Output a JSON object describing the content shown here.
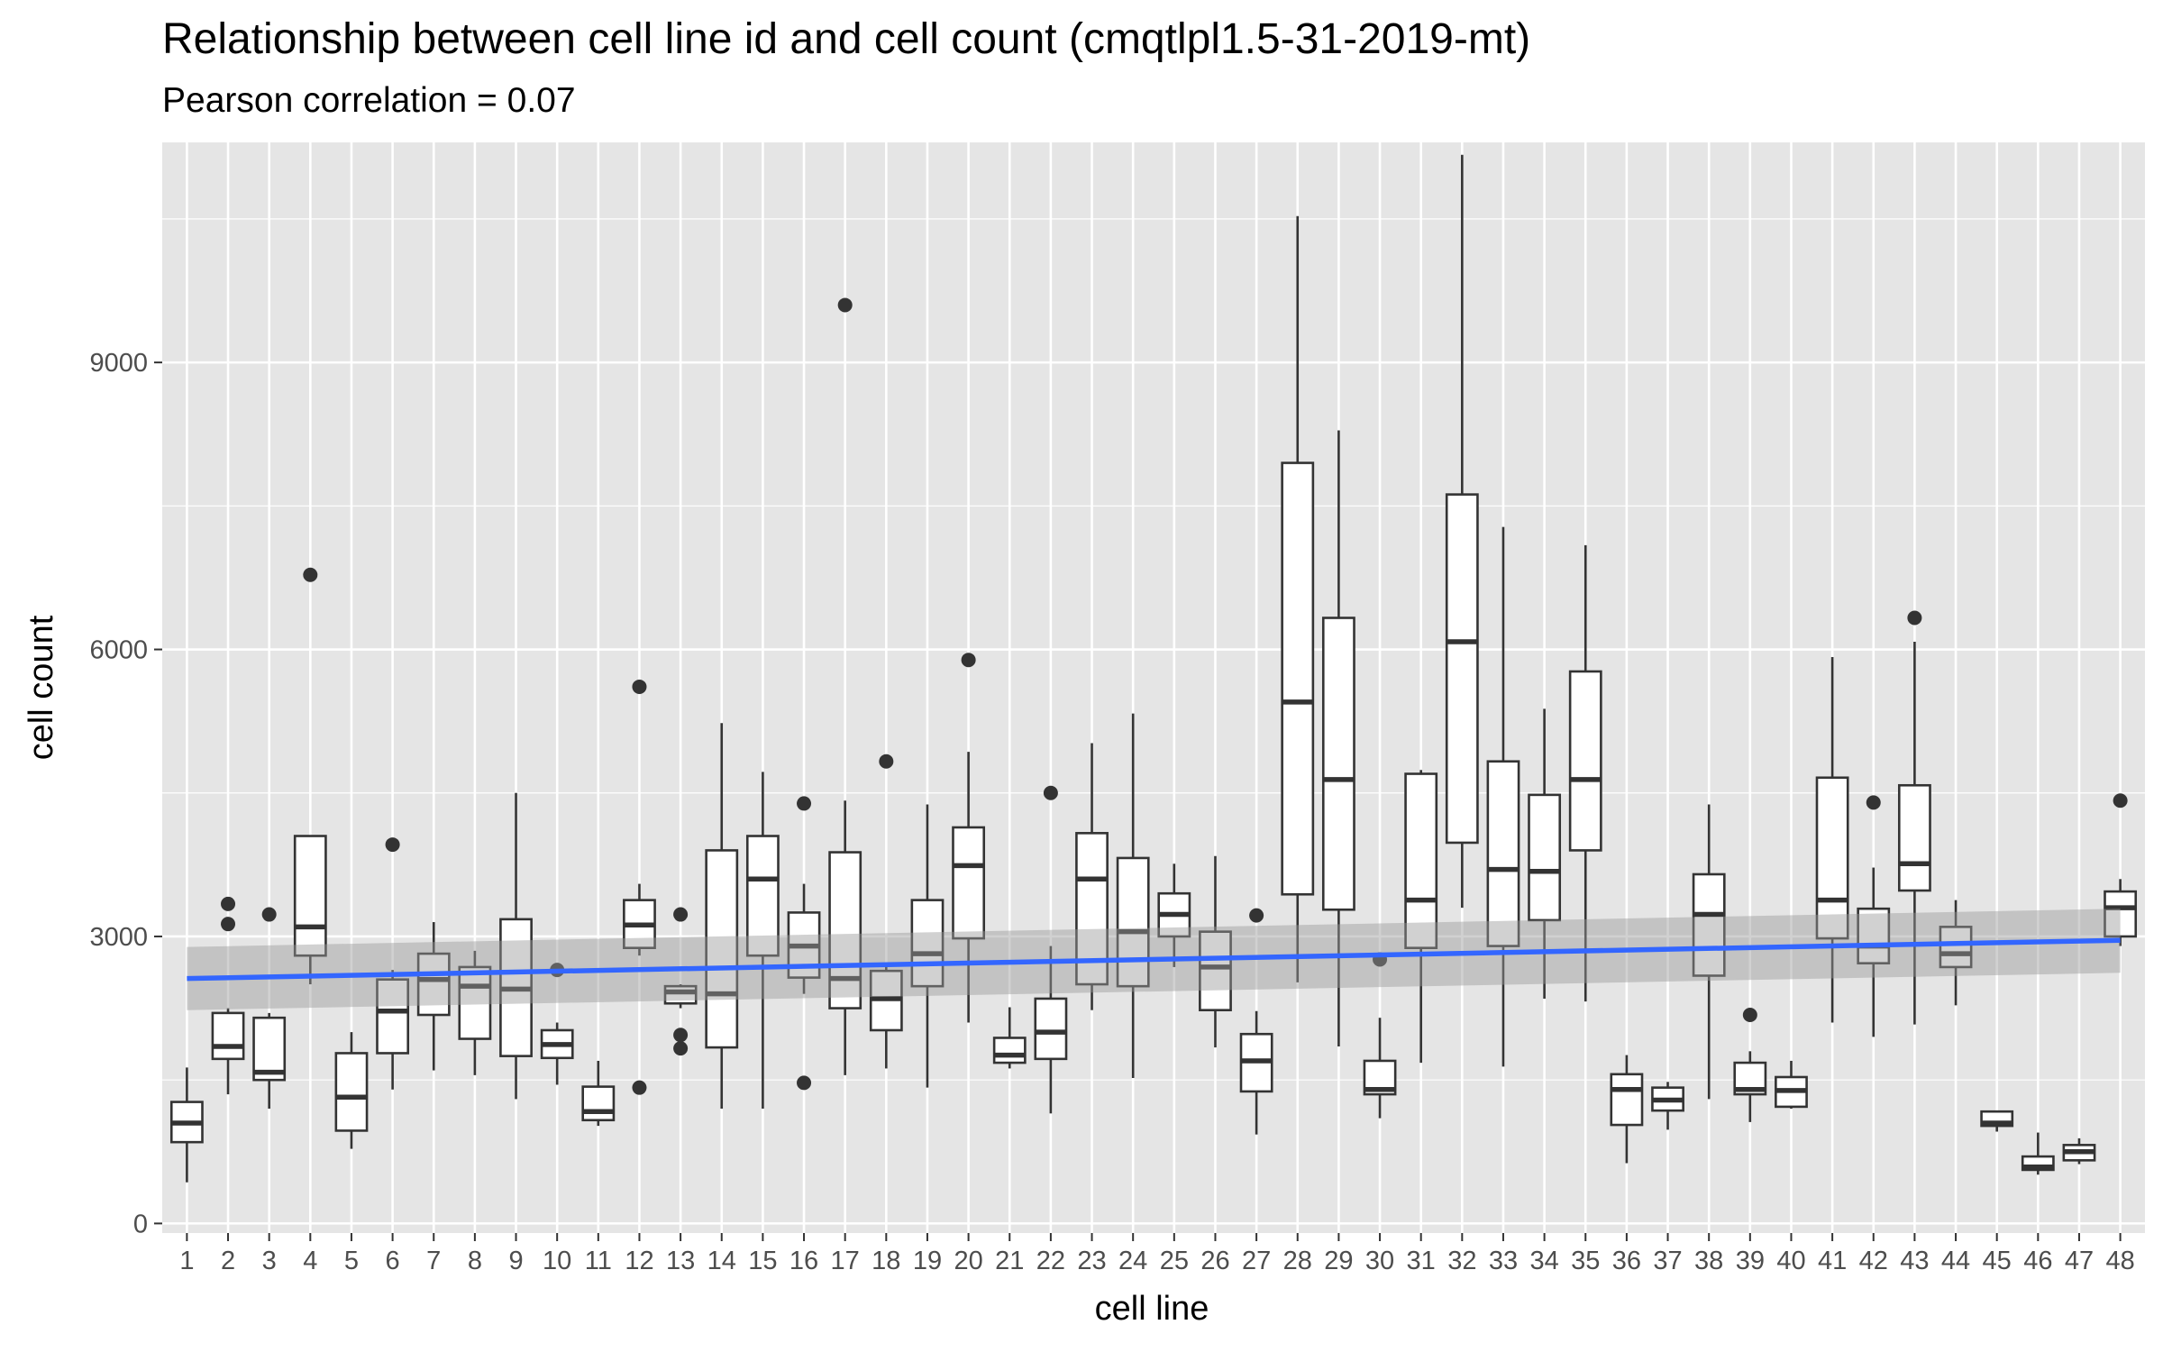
{
  "chart_data": {
    "type": "box",
    "title": "Relationship between cell line id and cell count (cmqtlpl1.5-31-2019-mt)",
    "subtitle": "Pearson correlation = 0.07",
    "xlabel": "cell line",
    "ylabel": "cell count",
    "ylim": [
      -100,
      11300
    ],
    "y_ticks": [
      0,
      3000,
      6000,
      9000
    ],
    "y_tick_labels": [
      "0",
      "3000",
      "6000",
      "9000"
    ],
    "grid": true,
    "legend": "none",
    "colors": {
      "panel": "#e5e5e5",
      "grid": "#ffffff",
      "box_fill": "#ffffff",
      "box_line": "#333333",
      "trend": "#3366ff",
      "ribbon": "#999999"
    },
    "categories": [
      "1",
      "2",
      "3",
      "4",
      "5",
      "6",
      "7",
      "8",
      "9",
      "10",
      "11",
      "12",
      "13",
      "14",
      "15",
      "16",
      "17",
      "18",
      "19",
      "20",
      "21",
      "22",
      "23",
      "24",
      "25",
      "26",
      "27",
      "28",
      "29",
      "30",
      "31",
      "32",
      "33",
      "34",
      "35",
      "36",
      "37",
      "38",
      "39",
      "40",
      "41",
      "42",
      "43",
      "44",
      "45",
      "46",
      "47",
      "48"
    ],
    "boxes": [
      {
        "min": 430,
        "q1": 850,
        "median": 1050,
        "q3": 1270,
        "max": 1630,
        "outliers": []
      },
      {
        "min": 1350,
        "q1": 1720,
        "median": 1850,
        "q3": 2200,
        "max": 2250,
        "outliers": [
          3130,
          3340
        ]
      },
      {
        "min": 1200,
        "q1": 1500,
        "median": 1580,
        "q3": 2150,
        "max": 2200,
        "outliers": [
          3230
        ]
      },
      {
        "min": 2500,
        "q1": 2800,
        "median": 3100,
        "q3": 4050,
        "max": 4050,
        "outliers": [
          6780
        ]
      },
      {
        "min": 780,
        "q1": 970,
        "median": 1320,
        "q3": 1780,
        "max": 2000,
        "outliers": []
      },
      {
        "min": 1400,
        "q1": 1780,
        "median": 2220,
        "q3": 2550,
        "max": 2650,
        "outliers": [
          3960
        ]
      },
      {
        "min": 1600,
        "q1": 2180,
        "median": 2550,
        "q3": 2820,
        "max": 3150,
        "outliers": []
      },
      {
        "min": 1550,
        "q1": 1930,
        "median": 2480,
        "q3": 2680,
        "max": 2850,
        "outliers": []
      },
      {
        "min": 1300,
        "q1": 1750,
        "median": 2450,
        "q3": 3180,
        "max": 4500,
        "outliers": []
      },
      {
        "min": 1450,
        "q1": 1730,
        "median": 1870,
        "q3": 2020,
        "max": 2100,
        "outliers": [
          2650
        ]
      },
      {
        "min": 1020,
        "q1": 1080,
        "median": 1170,
        "q3": 1430,
        "max": 1700,
        "outliers": []
      },
      {
        "min": 2800,
        "q1": 2880,
        "median": 3120,
        "q3": 3380,
        "max": 3550,
        "outliers": [
          1420,
          5610
        ]
      },
      {
        "min": 2250,
        "q1": 2300,
        "median": 2420,
        "q3": 2480,
        "max": 2500,
        "outliers": [
          1830,
          1970,
          3230
        ]
      },
      {
        "min": 1200,
        "q1": 1840,
        "median": 2400,
        "q3": 3900,
        "max": 5230,
        "outliers": []
      },
      {
        "min": 1200,
        "q1": 2800,
        "median": 3600,
        "q3": 4050,
        "max": 4720,
        "outliers": []
      },
      {
        "min": 2400,
        "q1": 2570,
        "median": 2900,
        "q3": 3250,
        "max": 3550,
        "outliers": [
          1470,
          4390
        ]
      },
      {
        "min": 1550,
        "q1": 2250,
        "median": 2560,
        "q3": 3880,
        "max": 4420,
        "outliers": [
          9600
        ]
      },
      {
        "min": 1620,
        "q1": 2020,
        "median": 2350,
        "q3": 2640,
        "max": 2680,
        "outliers": [
          4830
        ]
      },
      {
        "min": 1420,
        "q1": 2480,
        "median": 2820,
        "q3": 3380,
        "max": 4380,
        "outliers": []
      },
      {
        "min": 2100,
        "q1": 2980,
        "median": 3740,
        "q3": 4140,
        "max": 4930,
        "outliers": [
          5890
        ]
      },
      {
        "min": 1620,
        "q1": 1680,
        "median": 1760,
        "q3": 1940,
        "max": 2260,
        "outliers": []
      },
      {
        "min": 1150,
        "q1": 1720,
        "median": 2000,
        "q3": 2350,
        "max": 2900,
        "outliers": [
          4500
        ]
      },
      {
        "min": 2230,
        "q1": 2500,
        "median": 3600,
        "q3": 4080,
        "max": 5020,
        "outliers": []
      },
      {
        "min": 1520,
        "q1": 2480,
        "median": 3050,
        "q3": 3820,
        "max": 5330,
        "outliers": []
      },
      {
        "min": 2680,
        "q1": 3000,
        "median": 3230,
        "q3": 3450,
        "max": 3760,
        "outliers": []
      },
      {
        "min": 1840,
        "q1": 2230,
        "median": 2680,
        "q3": 3050,
        "max": 3840,
        "outliers": []
      },
      {
        "min": 930,
        "q1": 1380,
        "median": 1700,
        "q3": 1980,
        "max": 2220,
        "outliers": [
          3220
        ]
      },
      {
        "min": 2520,
        "q1": 3440,
        "median": 5450,
        "q3": 7950,
        "max": 10530,
        "outliers": []
      },
      {
        "min": 1850,
        "q1": 3280,
        "median": 4640,
        "q3": 6330,
        "max": 8290,
        "outliers": []
      },
      {
        "min": 1100,
        "q1": 1350,
        "median": 1400,
        "q3": 1700,
        "max": 2150,
        "outliers": [
          2760
        ]
      },
      {
        "min": 1680,
        "q1": 2880,
        "median": 3380,
        "q3": 4700,
        "max": 4740,
        "outliers": []
      },
      {
        "min": 3300,
        "q1": 3980,
        "median": 6080,
        "q3": 7620,
        "max": 11170,
        "outliers": []
      },
      {
        "min": 1640,
        "q1": 2900,
        "median": 3700,
        "q3": 4830,
        "max": 7280,
        "outliers": []
      },
      {
        "min": 2350,
        "q1": 3170,
        "median": 3680,
        "q3": 4480,
        "max": 5380,
        "outliers": []
      },
      {
        "min": 2320,
        "q1": 3900,
        "median": 4640,
        "q3": 5770,
        "max": 7090,
        "outliers": []
      },
      {
        "min": 630,
        "q1": 1030,
        "median": 1400,
        "q3": 1560,
        "max": 1760,
        "outliers": []
      },
      {
        "min": 980,
        "q1": 1180,
        "median": 1290,
        "q3": 1420,
        "max": 1480,
        "outliers": []
      },
      {
        "min": 1300,
        "q1": 2590,
        "median": 3230,
        "q3": 3650,
        "max": 4380,
        "outliers": []
      },
      {
        "min": 1060,
        "q1": 1350,
        "median": 1400,
        "q3": 1680,
        "max": 1800,
        "outliers": [
          2180
        ]
      },
      {
        "min": 1200,
        "q1": 1220,
        "median": 1390,
        "q3": 1530,
        "max": 1700,
        "outliers": []
      },
      {
        "min": 2100,
        "q1": 2980,
        "median": 3380,
        "q3": 4660,
        "max": 5920,
        "outliers": []
      },
      {
        "min": 1950,
        "q1": 2720,
        "median": 2900,
        "q3": 3290,
        "max": 3720,
        "outliers": [
          4400
        ]
      },
      {
        "min": 2080,
        "q1": 3480,
        "median": 3760,
        "q3": 4580,
        "max": 6080,
        "outliers": [
          6330
        ]
      },
      {
        "min": 2280,
        "q1": 2680,
        "median": 2820,
        "q3": 3100,
        "max": 3380,
        "outliers": []
      },
      {
        "min": 960,
        "q1": 1020,
        "median": 1050,
        "q3": 1170,
        "max": 1180,
        "outliers": []
      },
      {
        "min": 510,
        "q1": 560,
        "median": 590,
        "q3": 700,
        "max": 950,
        "outliers": []
      },
      {
        "min": 620,
        "q1": 660,
        "median": 750,
        "q3": 820,
        "max": 890,
        "outliers": []
      },
      {
        "min": 2900,
        "q1": 3000,
        "median": 3300,
        "q3": 3470,
        "max": 3600,
        "outliers": [
          4420
        ]
      }
    ],
    "trend": {
      "x": [
        1,
        48
      ],
      "y": [
        2560,
        2960
      ],
      "ci_lower": [
        2230,
        2620
      ],
      "ci_upper": [
        2890,
        3290
      ]
    }
  }
}
